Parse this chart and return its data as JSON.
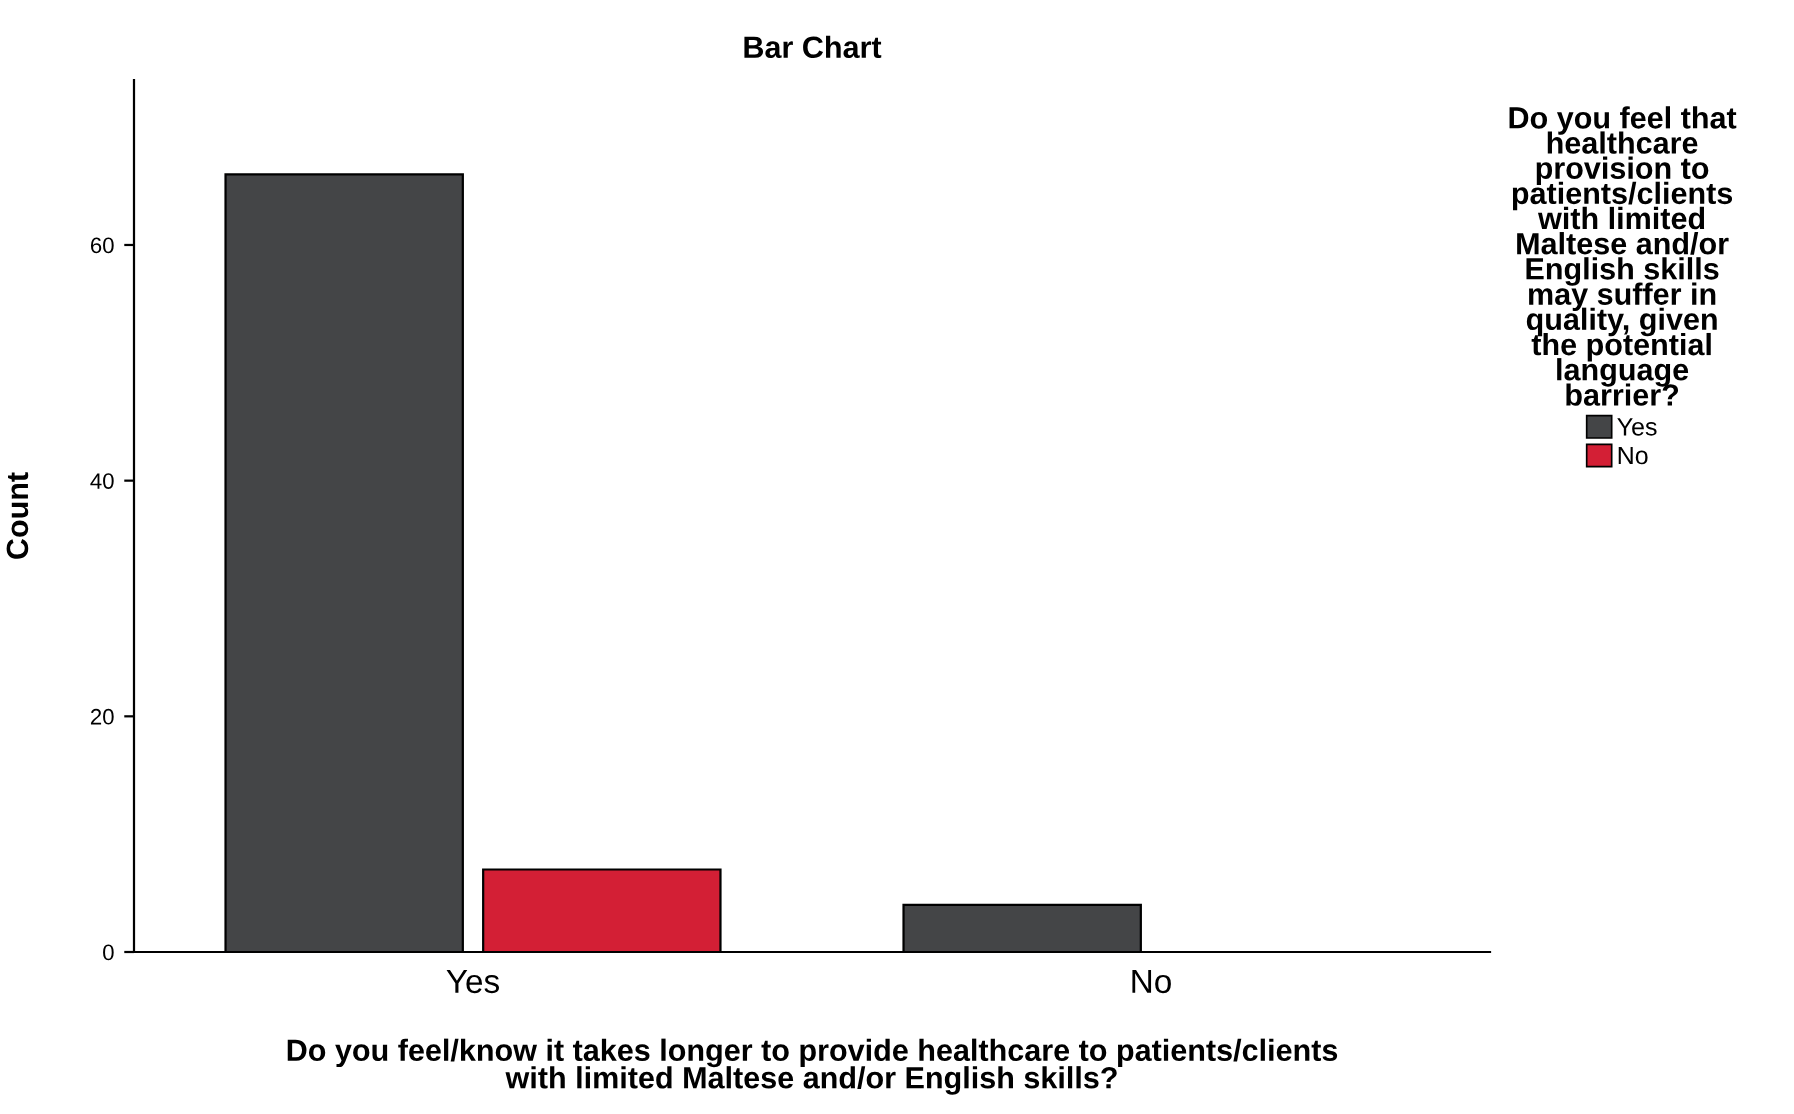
{
  "chart_data": {
    "type": "bar",
    "title": "Bar Chart",
    "xlabel": "Do you feel/know it takes longer to provide healthcare to patients/clients\nwith limited Maltese and/or English skills?",
    "ylabel": "Count",
    "legend_title": "Do you feel that\nhealthcare\nprovision to\npatients/clients\nwith limited\nMaltese and/or\nEnglish skills\nmay suffer in\nquality, given\nthe potential\nlanguage\nbarrier?",
    "categories": [
      "Yes",
      "No"
    ],
    "series": [
      {
        "name": "Yes",
        "color": "#444547",
        "values": [
          66,
          4
        ]
      },
      {
        "name": "No",
        "color": "#d31f35",
        "values": [
          7,
          null
        ]
      }
    ],
    "ylim": [
      0,
      74
    ],
    "yticks": [
      0,
      20,
      40,
      60
    ],
    "grid": false,
    "legend": "right"
  }
}
